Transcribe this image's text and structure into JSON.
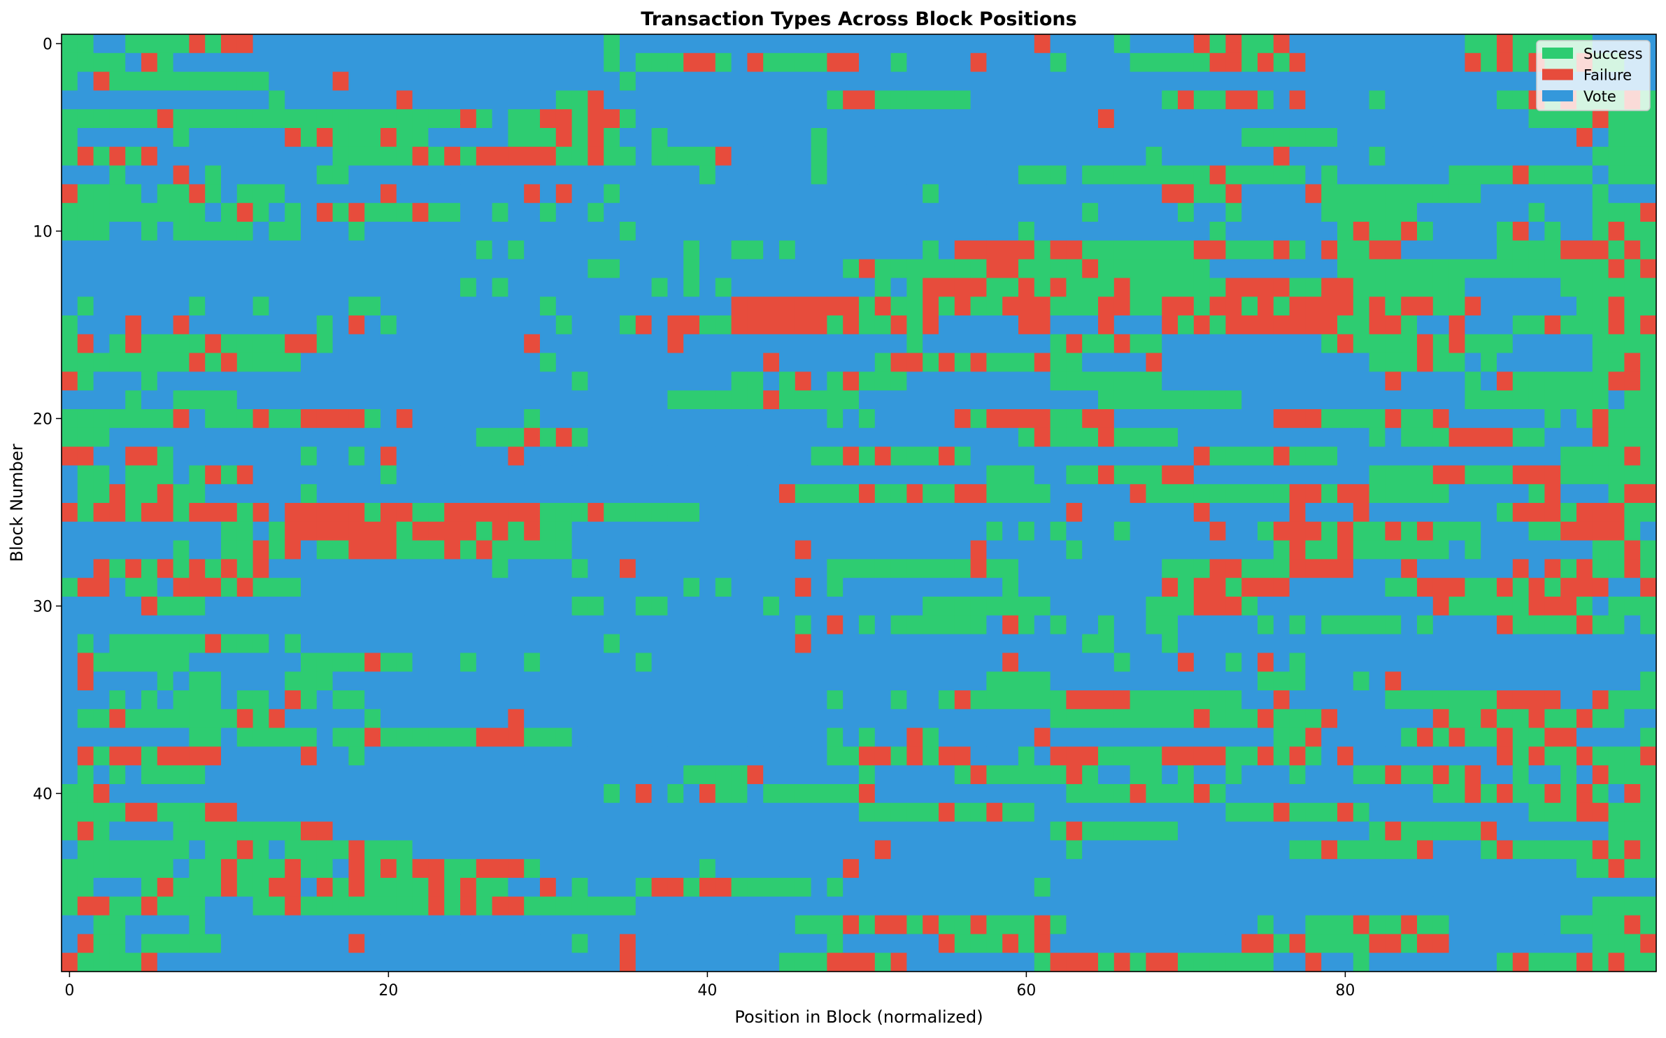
{
  "chart_data": {
    "type": "heatmap",
    "title": "Transaction Types Across Block Positions",
    "xlabel": "Position in Block (normalized)",
    "ylabel": "Block Number",
    "x_range": [
      0,
      99
    ],
    "y_range": [
      0,
      49
    ],
    "y_inverted": true,
    "xticks": [
      0,
      20,
      40,
      60,
      80
    ],
    "yticks": [
      0,
      10,
      20,
      30,
      40
    ],
    "grid": false,
    "legend_position": "top-right",
    "categories": [
      {
        "code": "G",
        "name": "Success",
        "color": "#2ecc71"
      },
      {
        "code": "R",
        "name": "Failure",
        "color": "#e74c3c"
      },
      {
        "code": "B",
        "name": "Vote",
        "color": "#3498db"
      }
    ],
    "rows": [
      "GGBBGGGGRGRRBBBBBBBBBBBBBBBBBBBBBBGBBBBBBBBBBBBBBBBBBBBBBBBBBRBBBBGBBBBRGRGGRBBBBBBBBBBBGGRGGGGGBBBBBBBBRRRG",
      "GGGGBRGBBBBBBBBBBBBBBBBBBBBBBBBBBBGBGGGRRGBRGGGGRRBBGBBBBRBBBBGBBBBGGGGGRRGRGRBBBBBBBBBBRGRGRGGRGGBBBB",
      "GBRGGGGGGGGGGBBBBRBBBBBBBBBBBBBBBBBGBBBBBBBBBBBBBBBBBBBBBBBBBBBBBBBBBBBBBBBBBBBBBBBBBBBBBBBBBBBBBBBBBBB",
      "BBBBBBBBBBBBBGBBBBBBBRBBBBBBBBBGGRBBBBBBBBBBBBBBGRRGGGGGGBBBBBBBBBBBBGRGGRRGBRBBBBGBBBBBBBGGRGRGGGRG",
      "GGGGGGRGGGGGGGGGGGGGGGGGGRGBGGRRGRRGBBBBBBBBBBBBBBBBBBBBBBBBBBBBBRBBBBBBBBBBBBBBBBBBBBBBBBBBGGGGRGGGGG",
      "GBBBBBBGBBBBBBRGRGGGRGGBBBBBGGGRGRGBBGBBBBBBBBBGBBBBBBBBBBBBBBBBBBBBBBBBBBGGGGGGBBBBBBBBBBBBBBBRBGGGRR",
      "GRGRGRBBBBBBBBBBBGGGGGRGRGRRRRRGGRGGBGGGGRBBBBBGBBBBBBBBBBBBBBBBBBBBGBBBBBBBRBBBBBGBBBBBBBBBBBBBGGGGGG",
      "BBBGBBBRBGBBBBBBGGBBBBBBBBBBBBBBBBBBBBBBGBBBBBBGBBBBBBBBBBBBGGGBGGGGGGGGRGGGGGBGBBBBBBBGGGGRGGGGBGGG",
      "RGGGGBGGRGBGGGBBBBBBRBBBBBBBBRBRBBGBBBBBBBBBBBBBBBBBBBGBBBBBBBBBBBBBBRRGGRBBBBRGGGGGGGGGGBBBBBBBGBBBG",
      "GGGGGGGGGBGRGBGBRGRGGGRGGBBGBBGBBGBBBBBBBBBBBBBBBBBBBBBBBBBBBBBBGBBBBBGBBGBBBBBGGGGGGBBBBBBBGBBBGGGR",
      "GGGBBGBGGGGGBGGBBBGBBBBBBBBBBBBBBBBGBBBBBBBBBBBBBBBBBBBBBBBBGBBBBBBBBBBBGBBBBBBBGRGGRGBBBBGRBGBBGRGGRBBBBBBGBBG",
      "BBBBBBBBBBBBBBBBBBBBBBBBBBGBGBBBBBBBBBBGBBGGBGBBBBBBBBGBRRRRRGRRGGGGGGGRRGGGRGBRGGRRBBBBBBGGGGRRRGRGG",
      "BBBBBBBBBBBBBBBBBBBBBBBBBBBBBBBBBGGBBBBGBBBBBBBBBGRGGGGGGGRRGGGGRGGGGGGGBBBBBBBBGGGGGGGGGGGGGGGGGRGRGR",
      "BBBBBBBBBBBBBBBBBBBBBBBBBGBGBBBBBBBBBGBGBGBBBBBBBBBGBGRRRRGGRGRGGGRGGGGGGRRRRGGRRGGGGGGGBBBBBBGGGGGG",
      "BGBBBBBBGBBBGBBBBBGGBBBBBBBBBBGBBBBBBBBBBBRRRRRRRRGRGGRGRGGRRRGGGRRGGRRGRRGRGRRRRGRGRRGGRBBBBBBGGRGG",
      "GBBBRBBRBBBBBBBBGBRBGBBBBBBBBBBGBBBGRBRRGGRRRRRRGRGGRGRBBBBBRRBBBRBBBRGRGRRRRRRRGGRRGBBRBBBGGRGGGRGR",
      "GRBGRGGGGRGGGGRRGBBBBBBBBBBBBRBBBBBBBBRBBBBBBBBBBBBBBGBBBBBBBBGRGGRGGBBBBBBBBBBGRGGGGRGRGGGBBBBBGGGG",
      "GGGGGGGGRGRGGGGBBBBBBBBBBBBBBBGBBBBBBBBBBBBBRBBBBBBGRRGRGRGGGRGGBBBBRBBBBBBBBBBBBBGGGRGGBGBBBBBBGGRGR",
      "RGBBBGBBBBBBBBBBBBBBBBBBBBBBBBBBGBBBBBBBBBGGBGRBGRGGGBBBBBBBBBGGGGGGGBBBBBBBBBBBBBBRBBBBGBRGGGGGGRRG",
      "BBBBGBBGGGGBBBBBBBBBBBBBBBBBBBBBBBBBBBGGGGGGRGGGGGBBBBBBBBBBBBBBBGGGGGGGGGBBBBBBBBBBBBBBGGGGGGGGGBGG",
      "GGGGGGGRBGGGRGGRRRRGBRBBBBBBBGBBBBBBBBBBBBBBBBBBGBGBBBBBRGRRRRGGRRBBBBBBBBBBRRRGGGGRGGRBBBBBBGBGRGGG",
      "GGGBBBBBBBBBBBBBBBBBBBBBBBGGGRGRGBBBBBBBBBBBBBBBBBBBBBBBBBBBGRGGGRGGGGBBBBBBBBBBBBGBGGGRRRRGGBBBRGGG",
      "RRBBRRGBBBBBBBBGBBGBRBBBBBBBRBBBBBBBBBBBBBBBBBBGGRGRGGGRGBBBBBBBBBBBBBBRGGGGRGGGBBBBBBBBBBBBBBGGGGRG",
      "BGGBGGGBGRGRBBBBBBBBGBBBBBBBBBBBBBBBBBBBBBBBBBBBBBBBBBBBBBGGGBBGGRGGGRRBBBBBBBBBBBGGGGRRGGGRRRGGGGGGGG",
      "BGGRGGRGGBBBBBBGBBBBBBBBBBBBBBBBBBBBBBBBBBBBBRGGGGRGGRGGRRGGGGBBBBBRGGGGGGGGGRRGRRGGGGGBBBBBGRBBBGRR",
      "RGRRGRRGRRRGRBRRRRRGRRGGRRRRRRGGGRGGGGGGBBBBBBBBBBBBBBBBBBBBBBBRBBBBBBBRBBBBBRBBBRBBBBBBBBGRRRGRRRGG",
      "BBBBBBBBBBGGBGRRRRRRRGRRRRGRGRGGBBBBBBBBBBBBBBBBBBBBBBBBBBGBGBGBBBGBBBBBRBBGRRRGRGGRGRGGGBBBGGRRRRGB",
      "BBBBBBBGBBGGRGRBGGRRRGGGRGRGGGGGBBBBBBBBBBBBBBRBBBBBBBBBBRBBBBBGBBBBBBBBBBBBGRGGRGGGGGGBGBBBBBBBGGRG",
      "BBRGRGRGRGRGRBBBBBBBBBBBBBBGBBBBGBBRBBBBBBBBBBBBGGGGGGGGGRGGBBBBBBBBBGGGRRGGGRRRRBBBRBBBBBBRBRGRGGRG",
      "GRRBGGBRRRGRGGGBBBBBBBBBBBBBBBBBBBBBBBBGBGBBBBRBGBBBBBBBBBBGBBBBBBBBBRGRRGRRRBBBBBBGGRRRGGRGRGRRRBBR",
      "BBBBBRGGGBBBBBBBBBBBBBBBBBBBBBBBGGBBGGBBBBBBGBBBBBBBBBGGGGGGGGBBBBBBGGGRRRGBBBBBBBBBBBRGGGGGRRRGBGGG",
      "BBBBBBBBBBBBBBBBBBBBBBBBBBBBBBBBBBBBBBBBBBBBBBGBRBGBGGGGGGBRGBGBBGBBGGBBBBBGBGBGGGGGBGBBBBRGGGGRGGBGG",
      "BGBGGGGGGRGGGBGBBBBBBBBBBBBBBBBBBBGBBBBBBBBBBBRBBBBBBBBBBBBBBBBBGGBBBGBBBBBBBBBBBBBBBBBBBBBBBBBBBBBBBBBBBBBGB",
      "BRGGGGGGBBBBBBBGGGGRGGBBBGBBBGBBBBBBGBBBBBBBBBBBBBBBBBBBBBBRBBBBBBGBBBRBBGBRBGBBBBBBBBBBBBBBBBBBBBBBG",
      "BRBBBBGBGGBBBBGGGBBBBBBBBBBBBBBBBBBBBBBBBBBBBBBBBBBBBBBBBBGGGGBBBBBBBBBBBBBGGGBBBGBRBBBBBBBBBBBBBBBGG",
      "BBBGBGBGGGBGGBRGBGGBBBBBBBBBBBBBBBBBBBBBBBBBBBBBGBBBGBBGRGGGGGGRRRRGGGGGGGBBRBBBBBBGGGGGGGRRRRBBRGGG",
      "BGGRGGGGGGGRGRBBBBBGBBBBBBBBRBBBBBBBBBBBBBBBBBBBBBBBBBBBBBBBBBGGGGGGGGGRGGGRGGGRBBBBBBRGGRGGRGGRGGBB",
      "BBBBBBBBGGBGGGGGBGGRGGGGGGRRRGGGBBBBBBBBBBBBBBBBGBGBBRGBBBBBBRBBBBBBBBBBBBBBGGRBBBBBGRGRGGRGGRRBBBBG",
      "BRGRRGRRRRBBBBBRBBGBBBBBBBBBBBBBBBBBBBBBBBBBBBBBGGRRGRGRRBBBGBRRRGGGGRRRRGGRGRGBRBBBBBBBBBRGRGGRGGGR",
      "BGBGBGGGGBBBBBBBBBBBBBBBBBBBBBBBBBBBBBBGGGGRBBBBBBGBBBBBGRGGGGGRGBBGGBGBBGBBBGBBBGGRGGRGRBBGBBGBRGGG",
      "GGRBBBBBBBBBBBBBBBBBBBBBBBBBBBBBBBGBRBGBRGGBGGGGGGRBBBBBBBBBBBBGGGGRGGGRGBBBBBBBBBBBBBGGRGRGGRGRGBRG",
      "GGGGRRGGGRRBBBBBBBBBBBBBBBBBBBBBBBBBBBBBBBBBBBBBBBGGGGGRGGRGGBBBBBBBBBBBBGGGRGGGRGBBBBBBBBBBGGGRRGGG",
      "GRGBBBBGGGGGGGGRRBBBBBBBBBBBBBBBBBBBBBBBBBBBBBBBBBBBBBBBBBBBBBGRGGGGGGBBBBBBBBBBBBGRGGGGGRBBBBBBBGGG",
      "BGGGGGGGBGGRGBGGGGRGGGBBBBBBBBBBBBBBBBBBBBBBBBBBBBBRBBBBBBBBBBBGBBBBBBBBBBBBBGGRGGGGGRBBBGRGGGGGRGRG",
      "GGGGGGGBGGRGGGRGGBRGRGRRGGRRRGBBBBBBBBBBGBBBBBBBBRBBBBBBBBBBBBBBBBBBBBBBBBBBBBBBBBBBBBBBBBBBBBBGGRGG",
      "GGBBBGRGGGRGGRRBRGRGGGGRGRGGBBRBGBBBGRRGRRGGGGGBGBBBBBBBBBBBBGBBBBBBBBBBBBBBBBBBBBBBBBBBBBBBBBBBBBBBBB",
      "GRRGGRGGGBBBGGRGGGGGGGGRGRGRRGGGGGGGBBBBBBBBBBBBBBBBBBBBBBBBBBBBBBBBBBBBBBBBBBBBBBBBBBBBBBBBBBBBGGGG",
      "BBGGBBBBGBBBBBBBBBBBBBBBBBBBBBBBBBBBBBBBBBBBBBGGGRGRRGRGGRGGGRGBBBBBBBBBBBBGBBGGGRGGRGGBBBBBBBGGGGRG",
      "BRGGBGGGGGBBBBBBBBRBBBBBBBBBBBBBGBBRBBBBBBBBBBBBGBBBBBBRGGGRGRBBBBBBBBBBBBRRGRGGGGRRGRRBBBBBBBBBGGGR",
      "RGGGGRBBBBBBBBBBBBBBBBBBBBBBBBBBBBBRBBBBBBBBBGGGRRRGRBBBBBBBBGRRRGRGRRGGGGGGBBRBBGBBBBBBBBGRGGGRGRGG"
    ]
  }
}
